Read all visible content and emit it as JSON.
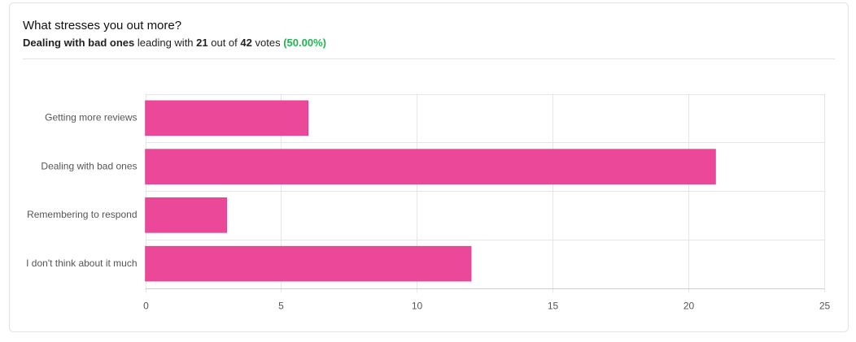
{
  "chart_data": {
    "type": "bar",
    "orientation": "horizontal",
    "title": "What stresses you out more?",
    "subtitle": {
      "leader": "Dealing with bad ones",
      "leading_text": "leading with",
      "leader_votes": 21,
      "out_of_text": "out of",
      "total_votes": 42,
      "votes_text": "votes",
      "share_label": "(50.00%)"
    },
    "categories": [
      "Getting more reviews",
      "Dealing with bad ones",
      "Remembering to respond",
      "I don't think about it much"
    ],
    "values": [
      6,
      21,
      3,
      12
    ],
    "color": "#ec4899",
    "xlim": [
      0,
      25
    ],
    "xticks": [
      0,
      5,
      10,
      15,
      20,
      25
    ],
    "grid": true
  }
}
